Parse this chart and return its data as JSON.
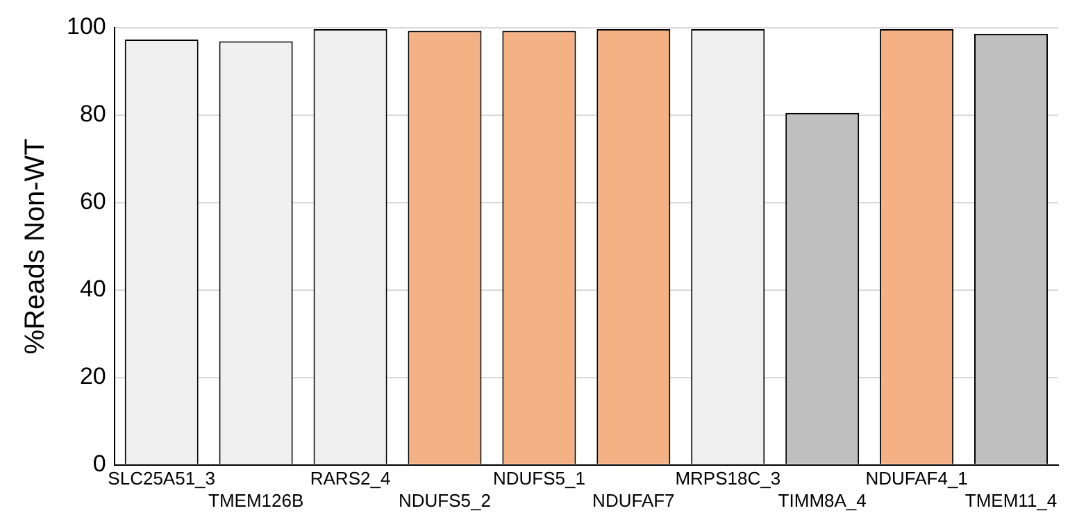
{
  "chart_data": {
    "type": "bar",
    "ylabel": "%Reads Non-WT",
    "categories": [
      "SLC25A51_3",
      "TMEM126B",
      "RARS2_4",
      "NDUFS5_2",
      "NDUFS5_1",
      "NDUFAF7",
      "MRPS18C_3",
      "TIMM8A_4",
      "NDUFAF4_1",
      "TMEM11_4"
    ],
    "values": [
      97.3,
      96.9,
      99.7,
      99.3,
      99.3,
      99.7,
      99.7,
      80.5,
      99.7,
      98.6
    ],
    "colors": [
      "#f0f0f0",
      "#f0f0f0",
      "#f0f0f0",
      "#f4b183",
      "#f4b183",
      "#f4b183",
      "#f0f0f0",
      "#bfbfbf",
      "#f4b183",
      "#bfbfbf"
    ],
    "ylim": [
      0,
      100
    ],
    "yticks": [
      0,
      20,
      40,
      60,
      80,
      100
    ],
    "grid": "y",
    "legend": false
  }
}
